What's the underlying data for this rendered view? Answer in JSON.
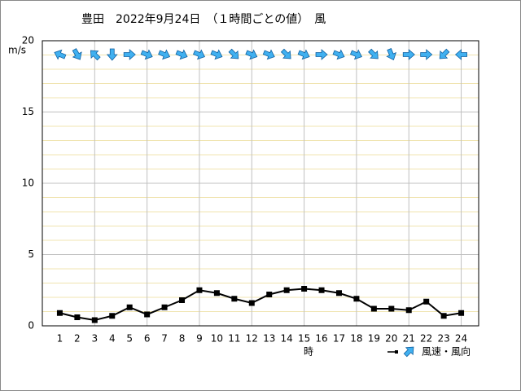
{
  "chart_data": {
    "type": "line",
    "title": "豊田　2022年9月24日　（１時間ごとの値）　風",
    "y_label": "m/s",
    "x_label": "時",
    "x": [
      1,
      2,
      3,
      4,
      5,
      6,
      7,
      8,
      9,
      10,
      11,
      12,
      13,
      14,
      15,
      16,
      17,
      18,
      19,
      20,
      21,
      22,
      23,
      24
    ],
    "xlim": [
      0,
      25
    ],
    "xticks": [
      1,
      2,
      3,
      4,
      5,
      6,
      7,
      8,
      9,
      10,
      11,
      12,
      13,
      14,
      15,
      16,
      17,
      18,
      19,
      20,
      21,
      22,
      23,
      24
    ],
    "ylim": [
      0,
      20
    ],
    "yticks": [
      0,
      5,
      10,
      15,
      20
    ],
    "grid": true,
    "series": [
      {
        "name": "風速・風向",
        "color": "#000000",
        "values": [
          0.9,
          0.6,
          0.4,
          0.7,
          1.3,
          0.8,
          1.3,
          1.8,
          2.5,
          2.3,
          1.9,
          1.6,
          2.2,
          2.5,
          2.6,
          2.5,
          2.3,
          1.9,
          1.2,
          1.2,
          1.1,
          1.7,
          0.7,
          0.9
        ],
        "directions": [
          292.5,
          150,
          315,
          180,
          90,
          112.5,
          112.5,
          112.5,
          112.5,
          112.5,
          135,
          112.5,
          112.5,
          135,
          112.5,
          90,
          112.5,
          112.5,
          135,
          157.5,
          90,
          90,
          225,
          270
        ],
        "arrow_color": "#40b0f0"
      }
    ],
    "legend": "bottom-right"
  }
}
